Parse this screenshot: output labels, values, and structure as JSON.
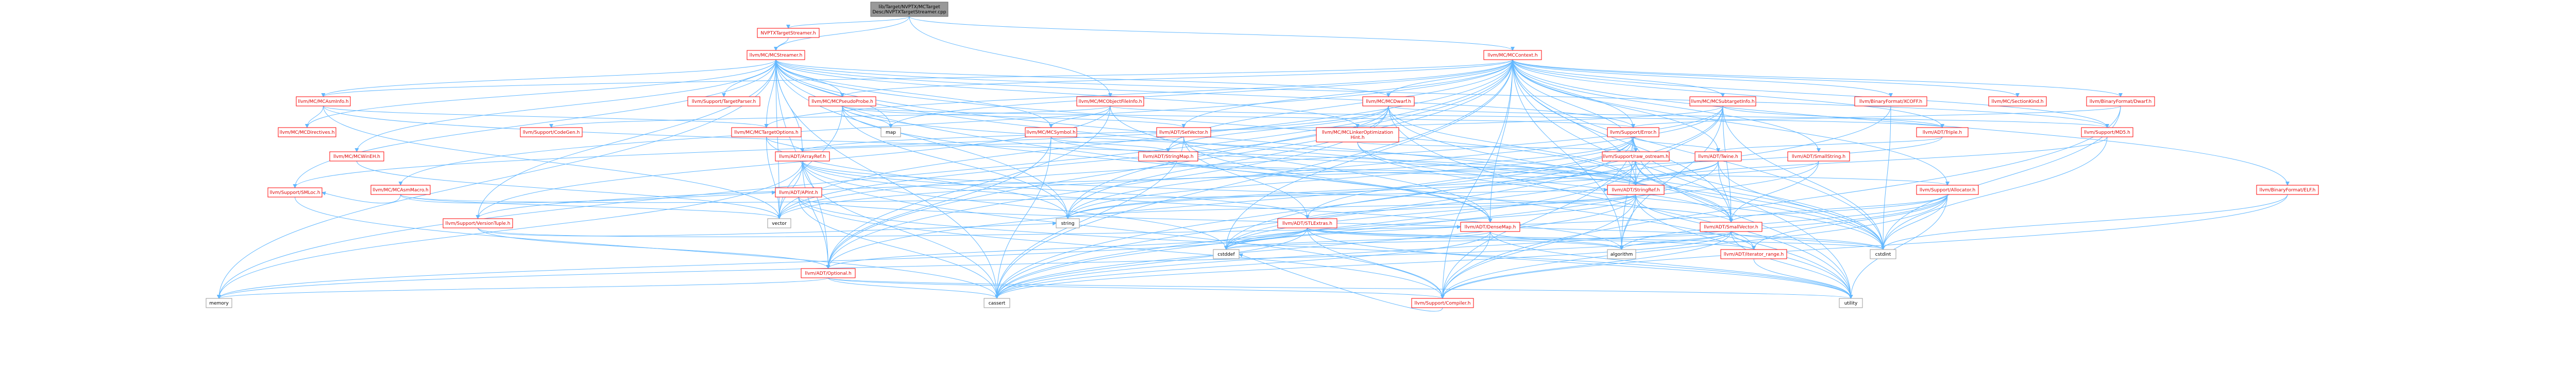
{
  "colors": {
    "edge": "#63b8ff",
    "root_fill": "#999999",
    "root_text": "#000000",
    "node_fill": "#ffffff",
    "node_border_internal": "#ff0000",
    "node_border_external": "#999999",
    "node_text": "#000000",
    "link_text": "#e00000"
  },
  "root": "lib/Target/NVPTX/MCTargetDesc/NVPTXTargetStreamer.cpp",
  "nodes": [
    {
      "id": "root",
      "label": [
        "lib/Target/NVPTX/MCTarget",
        "Desc/NVPTXTargetStreamer.cpp"
      ],
      "kind": "root"
    },
    {
      "id": "nvptx_ts_h",
      "label": [
        "NVPTXTargetStreamer.h"
      ],
      "kind": "internal"
    },
    {
      "id": "mcstreamer",
      "label": [
        "llvm/MC/MCStreamer.h"
      ],
      "kind": "internal"
    },
    {
      "id": "mccontext",
      "label": [
        "llvm/MC/MCContext.h"
      ],
      "kind": "internal"
    },
    {
      "id": "mcobjectfileinfo",
      "label": [
        "llvm/MC/MCObjectFileInfo.h"
      ],
      "kind": "internal"
    },
    {
      "id": "mcasminfo",
      "label": [
        "llvm/MC/MCAsmInfo.h"
      ],
      "kind": "internal"
    },
    {
      "id": "mcdirectives",
      "label": [
        "llvm/MC/MCDirectives.h"
      ],
      "kind": "internal"
    },
    {
      "id": "targetparser",
      "label": [
        "llvm/Support/TargetParser.h"
      ],
      "kind": "internal"
    },
    {
      "id": "mcpseudoprobe",
      "label": [
        "llvm/MC/MCPseudoProbe.h"
      ],
      "kind": "internal"
    },
    {
      "id": "map",
      "label": [
        "map"
      ],
      "kind": "std"
    },
    {
      "id": "codegen",
      "label": [
        "llvm/Support/CodeGen.h"
      ],
      "kind": "internal"
    },
    {
      "id": "mctargetoptions",
      "label": [
        "llvm/MC/MCTargetOptions.h"
      ],
      "kind": "internal"
    },
    {
      "id": "mcwinehh",
      "label": [
        "llvm/MC/MCWinEH.h"
      ],
      "kind": "internal"
    },
    {
      "id": "mcsymbol",
      "label": [
        "llvm/MC/MCSymbol.h"
      ],
      "kind": "internal"
    },
    {
      "id": "setvector",
      "label": [
        "llvm/ADT/SetVector.h"
      ],
      "kind": "internal"
    },
    {
      "id": "mcdwarf",
      "label": [
        "llvm/MC/MCDwarf.h"
      ],
      "kind": "internal"
    },
    {
      "id": "mclinkeropt",
      "label": [
        "llvm/MC/MCLinkerOptimization",
        "Hint.h"
      ],
      "kind": "internal"
    },
    {
      "id": "mcsubtargetinfo",
      "label": [
        "llvm/MC/MCSubtargetInfo.h"
      ],
      "kind": "internal"
    },
    {
      "id": "xcoff",
      "label": [
        "llvm/BinaryFormat/XCOFF.h"
      ],
      "kind": "internal"
    },
    {
      "id": "sectionkind",
      "label": [
        "llvm/MC/SectionKind.h"
      ],
      "kind": "internal"
    },
    {
      "id": "dwarf",
      "label": [
        "llvm/BinaryFormat/Dwarf.h"
      ],
      "kind": "internal"
    },
    {
      "id": "md5",
      "label": [
        "llvm/Support/MD5.h"
      ],
      "kind": "internal"
    },
    {
      "id": "triple",
      "label": [
        "llvm/ADT/Triple.h"
      ],
      "kind": "internal"
    },
    {
      "id": "error",
      "label": [
        "llvm/Support/Error.h"
      ],
      "kind": "internal"
    },
    {
      "id": "stringmap",
      "label": [
        "llvm/ADT/StringMap.h"
      ],
      "kind": "internal"
    },
    {
      "id": "mcasmmacro",
      "label": [
        "llvm/MC/MCAsmMacro.h"
      ],
      "kind": "internal"
    },
    {
      "id": "arrayref",
      "label": [
        "llvm/ADT/ArrayRef.h"
      ],
      "kind": "internal"
    },
    {
      "id": "raw_ostream",
      "label": [
        "llvm/Support/raw_ostream.h"
      ],
      "kind": "internal"
    },
    {
      "id": "twine",
      "label": [
        "llvm/ADT/Twine.h"
      ],
      "kind": "internal"
    },
    {
      "id": "smallstring",
      "label": [
        "llvm/ADT/SmallString.h"
      ],
      "kind": "internal"
    },
    {
      "id": "smloc",
      "label": [
        "llvm/Support/SMLoc.h"
      ],
      "kind": "internal"
    },
    {
      "id": "versiontuple",
      "label": [
        "llvm/Support/VersionTuple.h"
      ],
      "kind": "internal"
    },
    {
      "id": "apint",
      "label": [
        "llvm/ADT/APInt.h"
      ],
      "kind": "internal"
    },
    {
      "id": "vector",
      "label": [
        "vector"
      ],
      "kind": "std"
    },
    {
      "id": "stringref",
      "label": [
        "llvm/ADT/StringRef.h"
      ],
      "kind": "internal"
    },
    {
      "id": "allocator",
      "label": [
        "llvm/Support/Allocator.h"
      ],
      "kind": "internal"
    },
    {
      "id": "elf",
      "label": [
        "llvm/BinaryFormat/ELF.h"
      ],
      "kind": "internal"
    },
    {
      "id": "string",
      "label": [
        "string"
      ],
      "kind": "std"
    },
    {
      "id": "stlextras",
      "label": [
        "llvm/ADT/STLExtras.h"
      ],
      "kind": "internal"
    },
    {
      "id": "densemap",
      "label": [
        "llvm/ADT/DenseMap.h"
      ],
      "kind": "internal"
    },
    {
      "id": "smallvector",
      "label": [
        "llvm/ADT/SmallVector.h"
      ],
      "kind": "internal"
    },
    {
      "id": "cstddef",
      "label": [
        "cstddef"
      ],
      "kind": "std"
    },
    {
      "id": "algorithm",
      "label": [
        "algorithm"
      ],
      "kind": "std"
    },
    {
      "id": "iterator_range",
      "label": [
        "llvm/ADT/iterator_range.h"
      ],
      "kind": "internal"
    },
    {
      "id": "cstdint",
      "label": [
        "cstdint"
      ],
      "kind": "std"
    },
    {
      "id": "optional",
      "label": [
        "llvm/ADT/Optional.h"
      ],
      "kind": "internal"
    },
    {
      "id": "memory",
      "label": [
        "memory"
      ],
      "kind": "std"
    },
    {
      "id": "cassert",
      "label": [
        "cassert"
      ],
      "kind": "std"
    },
    {
      "id": "compiler",
      "label": [
        "llvm/Support/Compiler.h"
      ],
      "kind": "internal"
    },
    {
      "id": "utility",
      "label": [
        "utility"
      ],
      "kind": "std"
    }
  ],
  "edges": [
    [
      "root",
      "nvptx_ts_h"
    ],
    [
      "root",
      "mcstreamer"
    ],
    [
      "root",
      "mccontext"
    ],
    [
      "root",
      "mcobjectfileinfo"
    ],
    [
      "nvptx_ts_h",
      "mcstreamer"
    ],
    [
      "mcstreamer",
      "mcasminfo"
    ],
    [
      "mcstreamer",
      "mcdirectives"
    ],
    [
      "mcstreamer",
      "targetparser"
    ],
    [
      "mcstreamer",
      "mcpseudoprobe"
    ],
    [
      "mcstreamer",
      "map"
    ],
    [
      "mcstreamer",
      "mctargetoptions"
    ],
    [
      "mcstreamer",
      "mcwinehh"
    ],
    [
      "mcstreamer",
      "mcsymbol"
    ],
    [
      "mcstreamer",
      "mcdwarf"
    ],
    [
      "mcstreamer",
      "mclinkeropt"
    ],
    [
      "mcstreamer",
      "arrayref"
    ],
    [
      "mcstreamer",
      "smloc"
    ],
    [
      "mcstreamer",
      "versiontuple"
    ],
    [
      "mcstreamer",
      "vector"
    ],
    [
      "mcstreamer",
      "string"
    ],
    [
      "mcstreamer",
      "optional"
    ],
    [
      "mcstreamer",
      "memory"
    ],
    [
      "mcstreamer",
      "cstdint"
    ],
    [
      "mcstreamer",
      "smallvector"
    ],
    [
      "mcstreamer",
      "stringref"
    ],
    [
      "mcstreamer",
      "error"
    ],
    [
      "mcstreamer",
      "md5"
    ],
    [
      "mcstreamer",
      "cassert"
    ],
    [
      "mcstreamer",
      "utility"
    ],
    [
      "mccontext",
      "mcasminfo"
    ],
    [
      "mccontext",
      "mcpseudoprobe"
    ],
    [
      "mccontext",
      "mcdwarf"
    ],
    [
      "mccontext",
      "mcsubtargetinfo"
    ],
    [
      "mccontext",
      "xcoff"
    ],
    [
      "mccontext",
      "sectionkind"
    ],
    [
      "mccontext",
      "dwarf"
    ],
    [
      "mccontext",
      "md5"
    ],
    [
      "mccontext",
      "triple"
    ],
    [
      "mccontext",
      "error"
    ],
    [
      "mccontext",
      "stringmap"
    ],
    [
      "mccontext",
      "mcasmmacro"
    ],
    [
      "mccontext",
      "twine"
    ],
    [
      "mccontext",
      "smallstring"
    ],
    [
      "mccontext",
      "raw_ostream"
    ],
    [
      "mccontext",
      "allocator"
    ],
    [
      "mccontext",
      "elf"
    ],
    [
      "mccontext",
      "densemap"
    ],
    [
      "mccontext",
      "smallvector"
    ],
    [
      "mccontext",
      "stringref"
    ],
    [
      "mccontext",
      "setvector"
    ],
    [
      "mccontext",
      "map"
    ],
    [
      "mccontext",
      "vector"
    ],
    [
      "mccontext",
      "string"
    ],
    [
      "mccontext",
      "cstddef"
    ],
    [
      "mccontext",
      "algorithm"
    ],
    [
      "mccontext",
      "cstdint"
    ],
    [
      "mccontext",
      "optional"
    ],
    [
      "mccontext",
      "memory"
    ],
    [
      "mccontext",
      "cassert"
    ],
    [
      "mccontext",
      "compiler"
    ],
    [
      "mccontext",
      "utility"
    ],
    [
      "mccontext",
      "mctargetoptions"
    ],
    [
      "mcobjectfileinfo",
      "codegen"
    ],
    [
      "mcobjectfileinfo",
      "triple"
    ],
    [
      "mcobjectfileinfo",
      "versiontuple"
    ],
    [
      "mcobjectfileinfo",
      "optional"
    ],
    [
      "mcobjectfileinfo",
      "densemap"
    ],
    [
      "mcobjectfileinfo",
      "swift"
    ],
    [
      "mcobjectfileinfo",
      "array"
    ],
    [
      "mcobjectfileinfo",
      "mcsymbol"
    ],
    [
      "mcasminfo",
      "mcdirectives"
    ],
    [
      "mcasminfo",
      "mctargetoptions"
    ],
    [
      "mcasminfo",
      "vector"
    ],
    [
      "mcasminfo",
      "stringref"
    ],
    [
      "mcpseudoprobe",
      "map"
    ],
    [
      "mcpseudoprobe",
      "vector"
    ],
    [
      "mcpseudoprobe",
      "stringref"
    ],
    [
      "mcpseudoprobe",
      "densemap"
    ],
    [
      "mcpseudoprobe",
      "setvector"
    ],
    [
      "mcpseudoprobe",
      "error"
    ],
    [
      "mcpseudoprobe",
      "string"
    ],
    [
      "mctargetoptions",
      "arrayref"
    ],
    [
      "mctargetoptions",
      "string"
    ],
    [
      "mctargetoptions",
      "vector"
    ],
    [
      "mcwinehh",
      "vector"
    ],
    [
      "mcsymbol",
      "stringmap"
    ],
    [
      "mcsymbol",
      "stringref"
    ],
    [
      "mcsymbol",
      "optional"
    ],
    [
      "mcsymbol",
      "cassert"
    ],
    [
      "setvector",
      "arrayref"
    ],
    [
      "setvector",
      "densemap"
    ],
    [
      "setvector",
      "stlextras"
    ],
    [
      "setvector",
      "cassert"
    ],
    [
      "mcdwarf",
      "stringmap"
    ],
    [
      "mcdwarf",
      "md5"
    ],
    [
      "mcdwarf",
      "smloc"
    ],
    [
      "mcdwarf",
      "stringref"
    ],
    [
      "mcdwarf",
      "optional"
    ],
    [
      "mcdwarf",
      "vector"
    ],
    [
      "mcdwarf",
      "string"
    ],
    [
      "mcdwarf",
      "cstdint"
    ],
    [
      "mcdwarf",
      "utility"
    ],
    [
      "mcdwarf",
      "mapvector"
    ],
    [
      "mclinkeropt",
      "raw_ostream"
    ],
    [
      "mclinkeropt",
      "smallvector"
    ],
    [
      "mclinkeropt",
      "stringswitch"
    ],
    [
      "mclinkeropt",
      "cstdint"
    ],
    [
      "mcsubtargetinfo",
      "arrayref"
    ],
    [
      "mcsubtargetinfo",
      "stringref"
    ],
    [
      "mcsubtargetinfo",
      "triple"
    ],
    [
      "mcsubtargetinfo",
      "smallvector"
    ],
    [
      "mcsubtargetinfo",
      "string"
    ],
    [
      "mcsubtargetinfo",
      "vector"
    ],
    [
      "mcsubtargetinfo",
      "cassert"
    ],
    [
      "mcsubtargetinfo",
      "cstdint"
    ],
    [
      "mcsubtargetinfo",
      "algorithm"
    ],
    [
      "xcoff",
      "cstddef"
    ],
    [
      "xcoff",
      "cstdint"
    ],
    [
      "dwarf",
      "error"
    ],
    [
      "dwarf",
      "compiler"
    ],
    [
      "dwarf",
      "cstdint"
    ],
    [
      "md5",
      "cstdint"
    ],
    [
      "md5",
      "stringref"
    ],
    [
      "md5",
      "array"
    ],
    [
      "triple",
      "twine"
    ],
    [
      "triple",
      "versiontuple"
    ],
    [
      "error",
      "twine"
    ],
    [
      "error",
      "raw_ostream"
    ],
    [
      "error",
      "stlextras"
    ],
    [
      "error",
      "compiler"
    ],
    [
      "error",
      "optional"
    ],
    [
      "error",
      "string"
    ],
    [
      "error",
      "vector"
    ],
    [
      "error",
      "cassert"
    ],
    [
      "error",
      "cstdint"
    ],
    [
      "error",
      "utility"
    ],
    [
      "error",
      "algorithm"
    ],
    [
      "stringmap",
      "stringref"
    ],
    [
      "stringmap",
      "allocator"
    ],
    [
      "mcasmmacro",
      "smloc"
    ],
    [
      "mcasmmacro",
      "apint"
    ],
    [
      "mcasmmacro",
      "stringref"
    ],
    [
      "mcasmmacro",
      "vector"
    ],
    [
      "arrayref",
      "smallvector"
    ],
    [
      "arrayref",
      "stlextras"
    ],
    [
      "arrayref",
      "optional"
    ],
    [
      "arrayref",
      "compiler"
    ],
    [
      "arrayref",
      "vector"
    ],
    [
      "arrayref",
      "memory"
    ],
    [
      "arrayref",
      "cassert"
    ],
    [
      "arrayref",
      "cstddef"
    ],
    [
      "arrayref",
      "algorithm"
    ],
    [
      "raw_ostream",
      "stringref"
    ],
    [
      "raw_ostream",
      "cstdint"
    ],
    [
      "raw_ostream",
      "string"
    ],
    [
      "raw_ostream",
      "cassert"
    ],
    [
      "raw_ostream",
      "cstddef"
    ],
    [
      "raw_ostream",
      "smallvector"
    ],
    [
      "twine",
      "smallvector"
    ],
    [
      "twine",
      "stringref"
    ],
    [
      "twine",
      "cassert"
    ],
    [
      "twine",
      "cstdint"
    ],
    [
      "twine",
      "string"
    ],
    [
      "smallstring",
      "smallvector"
    ],
    [
      "smallstring",
      "stringref"
    ],
    [
      "smallstring",
      "cstddef"
    ],
    [
      "smloc",
      "cassert"
    ],
    [
      "versiontuple",
      "optional"
    ],
    [
      "versiontuple",
      "string"
    ],
    [
      "versiontuple",
      "densemap"
    ],
    [
      "apint",
      "compiler"
    ],
    [
      "apint",
      "cassert"
    ],
    [
      "apint",
      "cstdint"
    ],
    [
      "apint",
      "utility"
    ],
    [
      "stringref",
      "stlextras"
    ],
    [
      "stringref",
      "iterator_range"
    ],
    [
      "stringref",
      "compiler"
    ],
    [
      "stringref",
      "algorithm"
    ],
    [
      "stringref",
      "cassert"
    ],
    [
      "stringref",
      "cstddef"
    ],
    [
      "stringref",
      "string"
    ],
    [
      "stringref",
      "utility"
    ],
    [
      "allocator",
      "compiler"
    ],
    [
      "allocator",
      "smallvector"
    ],
    [
      "allocator",
      "algorithm"
    ],
    [
      "allocator",
      "cassert"
    ],
    [
      "allocator",
      "cstddef"
    ],
    [
      "allocator",
      "cstdint"
    ],
    [
      "allocator",
      "iterator_range"
    ],
    [
      "allocator",
      "utility"
    ],
    [
      "elf",
      "compiler"
    ],
    [
      "elf",
      "cstdint"
    ],
    [
      "stlextras",
      "optional"
    ],
    [
      "stlextras",
      "iterator_range"
    ],
    [
      "stlextras",
      "compiler"
    ],
    [
      "stlextras",
      "algorithm"
    ],
    [
      "stlextras",
      "cassert"
    ],
    [
      "stlextras",
      "cstddef"
    ],
    [
      "stlextras",
      "cstdint"
    ],
    [
      "stlextras",
      "memory"
    ],
    [
      "stlextras",
      "utility"
    ],
    [
      "densemap",
      "compiler"
    ],
    [
      "densemap",
      "algorithm"
    ],
    [
      "densemap",
      "cassert"
    ],
    [
      "densemap",
      "cstddef"
    ],
    [
      "densemap",
      "utility"
    ],
    [
      "smallvector",
      "compiler"
    ],
    [
      "smallvector",
      "algorithm"
    ],
    [
      "smallvector",
      "cassert"
    ],
    [
      "smallvector",
      "cstddef"
    ],
    [
      "smallvector",
      "cstdint"
    ],
    [
      "smallvector",
      "memory"
    ],
    [
      "smallvector",
      "utility"
    ],
    [
      "smallvector",
      "iterator_range"
    ],
    [
      "iterator_range",
      "utility"
    ],
    [
      "optional",
      "compiler"
    ],
    [
      "optional",
      "cassert"
    ],
    [
      "optional",
      "memory"
    ],
    [
      "optional",
      "utility"
    ],
    [
      "compiler",
      "cstddef"
    ]
  ]
}
